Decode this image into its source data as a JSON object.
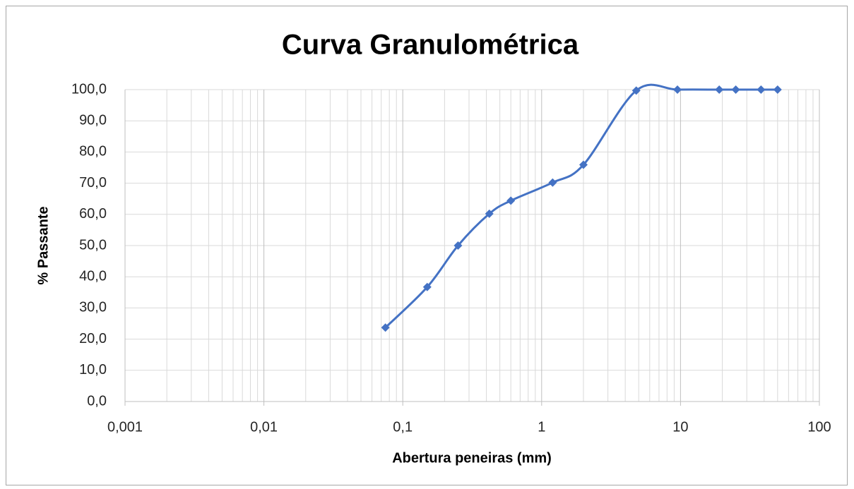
{
  "chart_data": {
    "type": "line",
    "title": "Curva Granulométrica",
    "x_label": "Abertura  peneiras (mm)",
    "y_label": "% Passante",
    "x": [
      0.075,
      0.15,
      0.25,
      0.42,
      0.6,
      1.2,
      2.0,
      4.8,
      9.5,
      19,
      25,
      38,
      50
    ],
    "series": [
      {
        "name": "% Passante",
        "color": "#4472c4",
        "values": [
          23.7,
          36.7,
          50.0,
          60.2,
          64.4,
          70.2,
          75.9,
          99.7,
          100,
          100,
          100,
          100,
          100
        ]
      }
    ],
    "xlim": [
      0.001,
      100
    ],
    "xlog": true,
    "xticks": [
      {
        "value": 0.001,
        "label": "0,001"
      },
      {
        "value": 0.01,
        "label": "0,01"
      },
      {
        "value": 0.1,
        "label": "0,1"
      },
      1,
      10,
      100
    ],
    "ylim": [
      0,
      100
    ],
    "yticks": [
      {
        "value": 0,
        "label": "0,0"
      },
      {
        "value": 10,
        "label": "10,0"
      },
      {
        "value": 20,
        "label": "20,0"
      },
      {
        "value": 30,
        "label": "30,0"
      },
      {
        "value": 40,
        "label": "40,0"
      },
      {
        "value": 50,
        "label": "50,0"
      },
      {
        "value": 60,
        "label": "60,0"
      },
      {
        "value": 70,
        "label": "70,0"
      },
      {
        "value": 80,
        "label": "80,0"
      },
      {
        "value": 90,
        "label": "90,0"
      },
      {
        "value": 100,
        "label": "100,0"
      }
    ],
    "grid": true,
    "minor_grid": true,
    "smooth": true,
    "marker": "diamond"
  }
}
